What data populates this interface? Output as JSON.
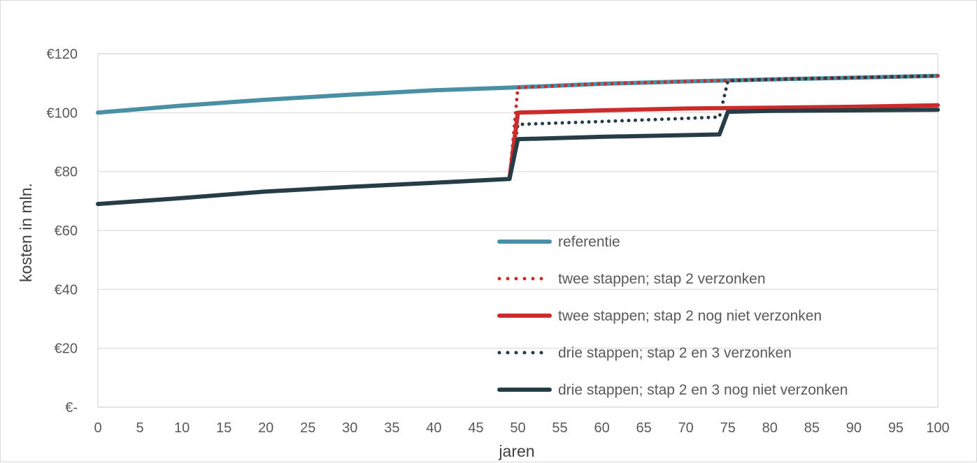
{
  "chart_data": {
    "type": "line",
    "title": "",
    "xlabel": "jaren",
    "ylabel": "kosten in mln.",
    "x_range": [
      0,
      100
    ],
    "ylim": [
      0,
      120
    ],
    "x_ticks": [
      "0",
      "5",
      "10",
      "15",
      "20",
      "25",
      "30",
      "35",
      "40",
      "45",
      "50",
      "55",
      "60",
      "65",
      "70",
      "75",
      "80",
      "85",
      "90",
      "95",
      "100"
    ],
    "y_ticks": [
      "€-",
      "€20",
      "€40",
      "€60",
      "€80",
      "€100",
      "€120"
    ],
    "grid": "horizontal",
    "legend_position": "center-right",
    "series": [
      {
        "name": "referentie",
        "style": "solid",
        "color": "#4a90a4",
        "points": [
          [
            0,
            100
          ],
          [
            10,
            102.4
          ],
          [
            20,
            104.4
          ],
          [
            30,
            106.1
          ],
          [
            40,
            107.6
          ],
          [
            49,
            108.5
          ],
          [
            60,
            109.8
          ],
          [
            70,
            110.6
          ],
          [
            80,
            111.3
          ],
          [
            90,
            111.9
          ],
          [
            100,
            112.5
          ]
        ]
      },
      {
        "name": "twee stappen; stap 2 verzonken",
        "style": "dotted",
        "color": "#cc2b2b",
        "points": [
          [
            49,
            77.5
          ],
          [
            50,
            108.5
          ],
          [
            60,
            109.8
          ],
          [
            70,
            110.6
          ],
          [
            80,
            111.3
          ],
          [
            90,
            111.9
          ],
          [
            100,
            112.5
          ]
        ]
      },
      {
        "name": "twee stappen; stap 2 nog niet verzonken",
        "style": "solid",
        "color": "#cc2b2b",
        "points": [
          [
            49,
            77.5
          ],
          [
            50,
            100
          ],
          [
            60,
            100.8
          ],
          [
            70,
            101.4
          ],
          [
            80,
            101.7
          ],
          [
            90,
            102
          ],
          [
            100,
            102.5
          ]
        ]
      },
      {
        "name": "drie stappen; stap 2 en 3 verzonken",
        "style": "dotted",
        "color": "#263d47",
        "points": [
          [
            49,
            77.5
          ],
          [
            50,
            96
          ],
          [
            60,
            97
          ],
          [
            74,
            98.5
          ],
          [
            75,
            110.8
          ],
          [
            80,
            111.3
          ],
          [
            90,
            111.9
          ],
          [
            100,
            112.5
          ]
        ]
      },
      {
        "name": "drie stappen; stap 2 en 3 nog niet verzonken",
        "style": "solid",
        "color": "#263d47",
        "points": [
          [
            0,
            69
          ],
          [
            10,
            71
          ],
          [
            20,
            73.2
          ],
          [
            30,
            74.8
          ],
          [
            40,
            76.2
          ],
          [
            49,
            77.5
          ],
          [
            50,
            91
          ],
          [
            60,
            91.8
          ],
          [
            74,
            92.6
          ],
          [
            75,
            100.3
          ],
          [
            80,
            100.6
          ],
          [
            90,
            100.8
          ],
          [
            100,
            101
          ]
        ]
      }
    ]
  }
}
